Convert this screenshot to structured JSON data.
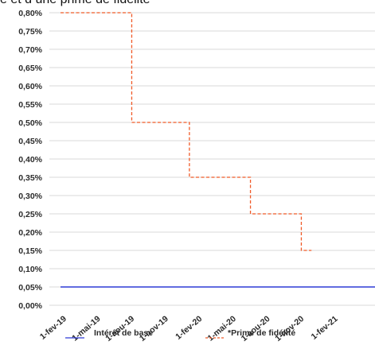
{
  "header": {
    "title_fragment": "e et d une prime de fidélité"
  },
  "chart_data": {
    "type": "line",
    "x": [
      "1-fev-19",
      "1-mai-19",
      "1-aou-19",
      "1-nov-19",
      "1-fev-20",
      "1-mai-20",
      "1-aou-20",
      "1-nov-20",
      "1-fev-21"
    ],
    "ylim": [
      0,
      0.8
    ],
    "yticks": [
      "0,00%",
      "0,05%",
      "0,10%",
      "0,15%",
      "0,20%",
      "0,25%",
      "0,30%",
      "0,35%",
      "0,40%",
      "0,45%",
      "0,50%",
      "0,55%",
      "0,60%",
      "0,65%",
      "0,70%",
      "0,75%",
      "0,80%"
    ],
    "grid": true,
    "legend_position": "bottom",
    "series": [
      {
        "name": "Intérêt de base",
        "color": "#2f3bd6",
        "style": "solid",
        "points": [
          [
            0,
            0.05
          ],
          [
            9.3,
            0.05
          ]
        ]
      },
      {
        "name": "*Prime de fidélité",
        "color": "#f05a28",
        "style": "dashed",
        "points": [
          [
            0,
            0.8
          ],
          [
            2.1,
            0.8
          ],
          [
            2.1,
            0.5
          ],
          [
            3.8,
            0.5
          ],
          [
            3.8,
            0.35
          ],
          [
            5.6,
            0.35
          ],
          [
            5.6,
            0.25
          ],
          [
            7.1,
            0.25
          ],
          [
            7.1,
            0.15
          ],
          [
            7.4,
            0.15
          ]
        ]
      }
    ]
  }
}
